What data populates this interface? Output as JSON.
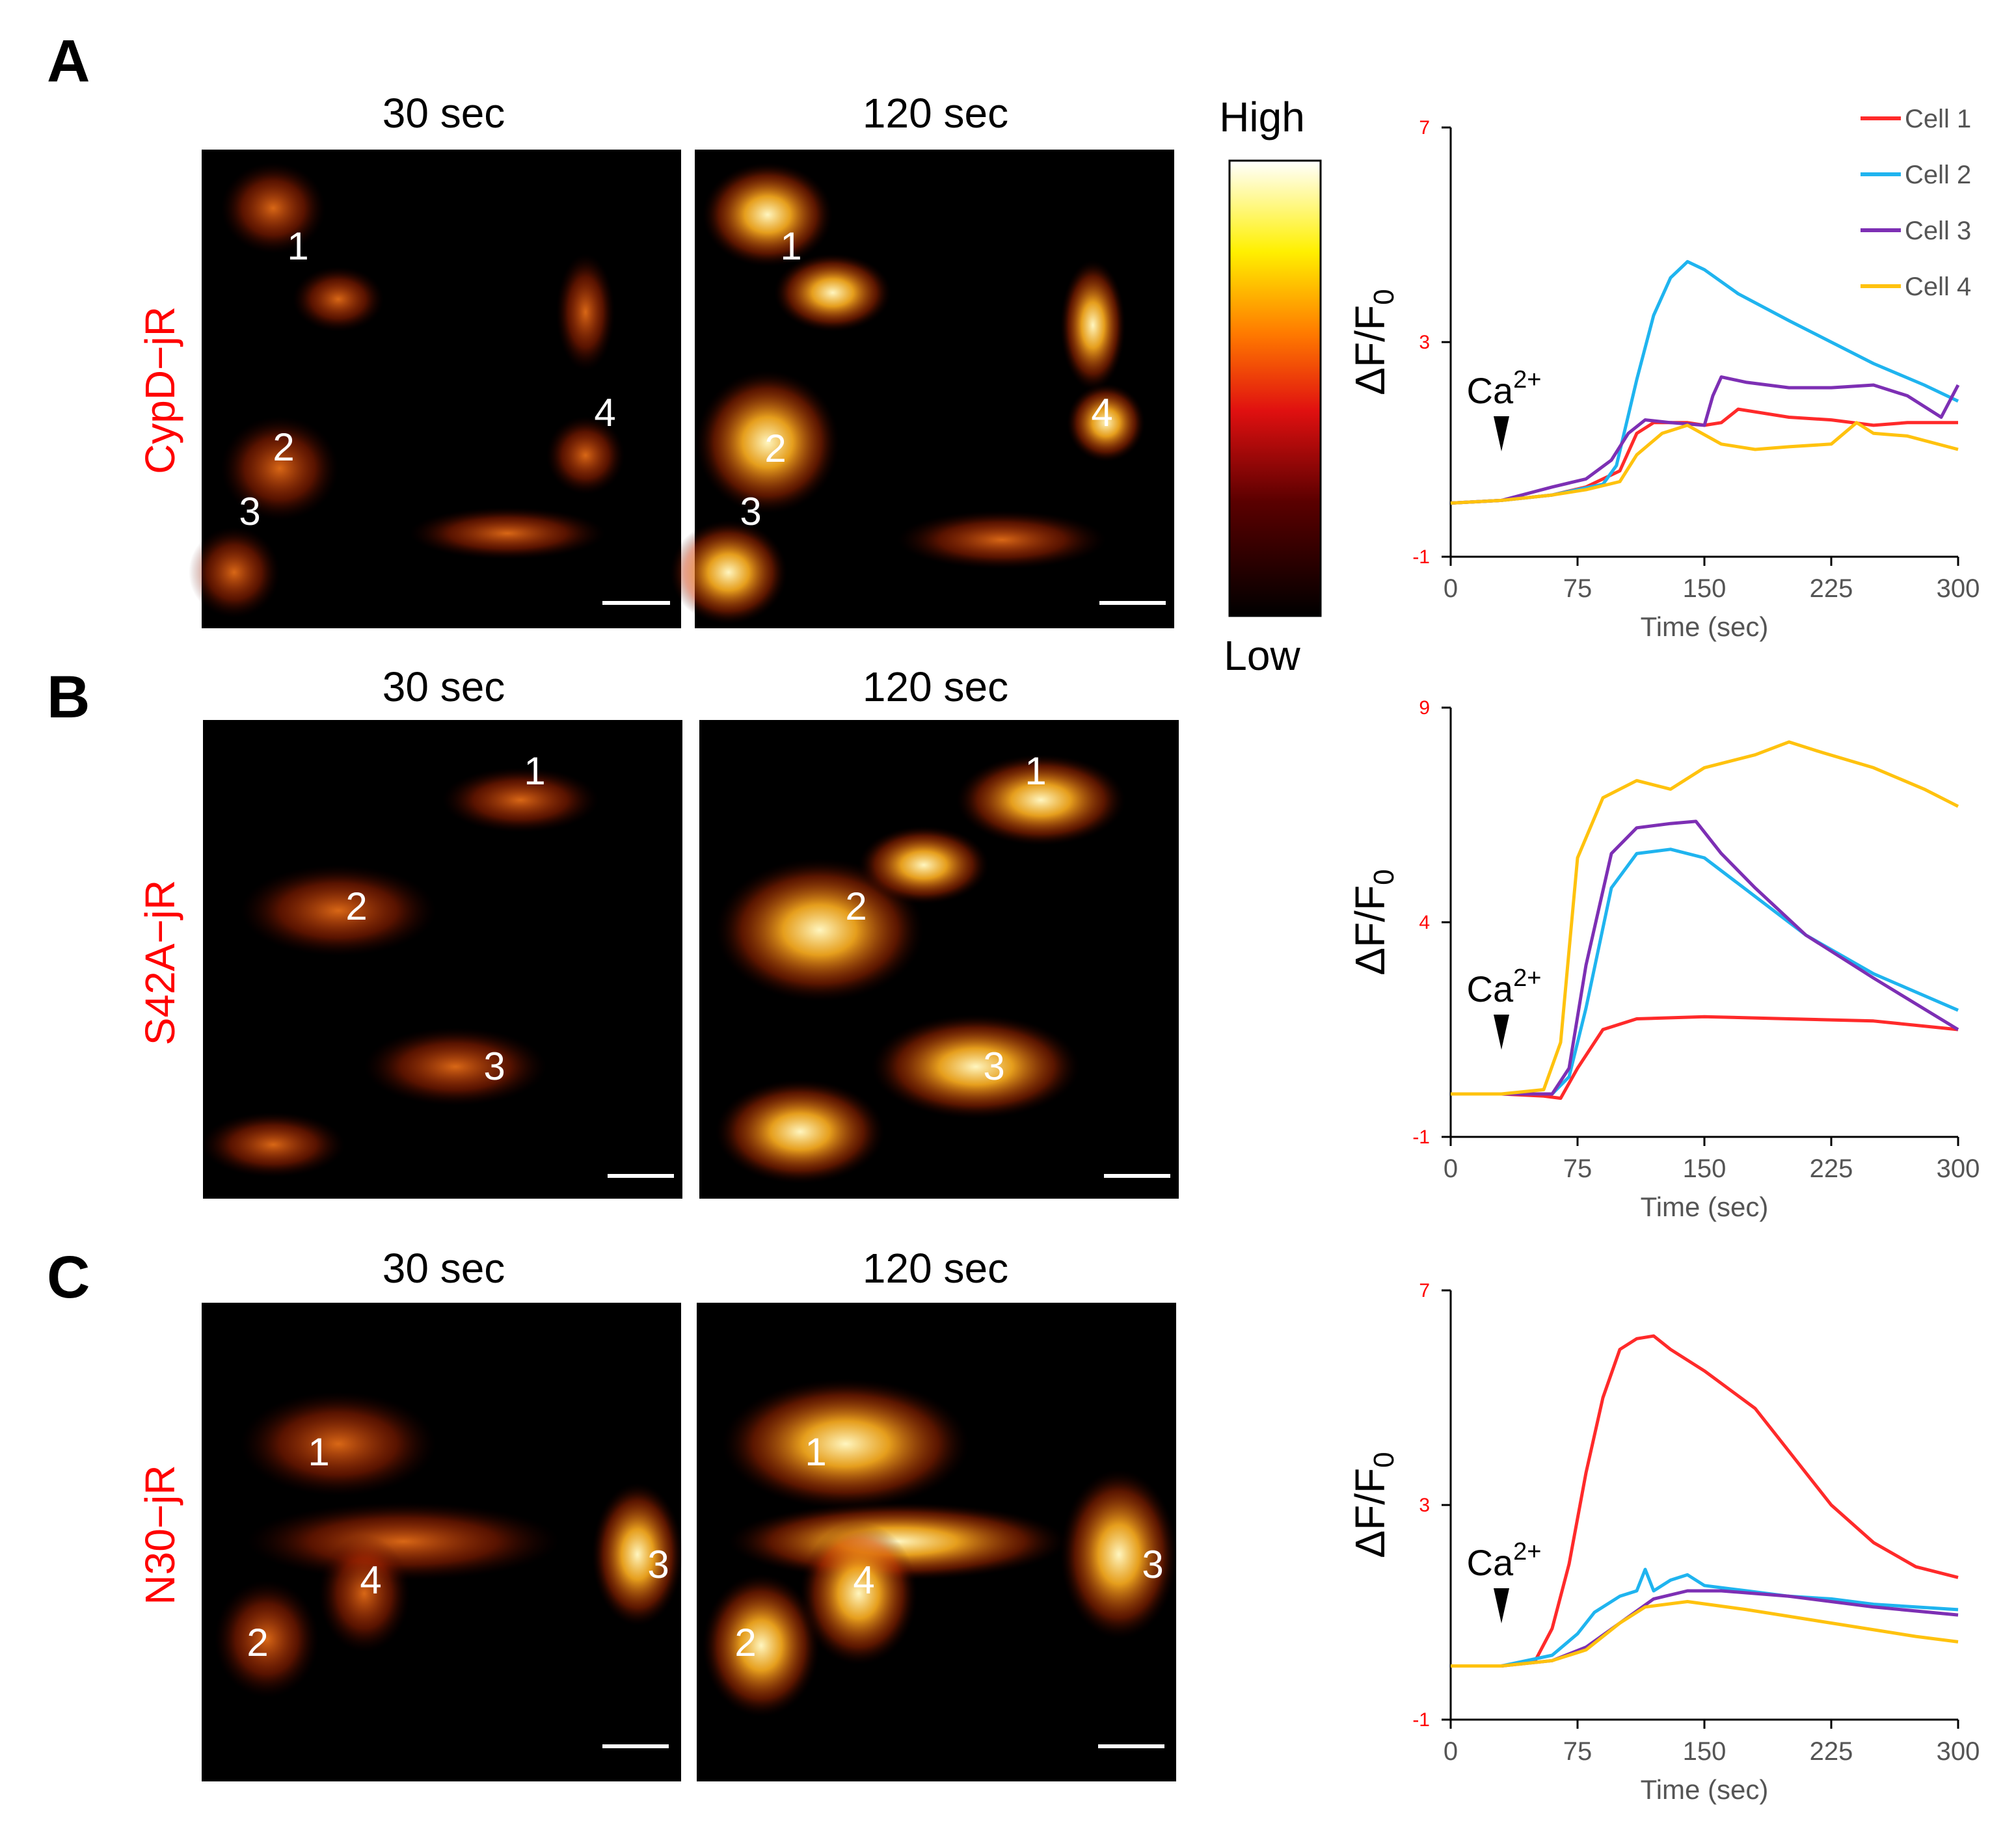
{
  "figure": {
    "panel_letters": [
      "A",
      "B",
      "C"
    ],
    "time_labels": [
      "30 sec",
      "120 sec"
    ],
    "row_labels": [
      "CypD−jR",
      "S42A−jR",
      "N30−jR"
    ],
    "colorbar": {
      "high": "High",
      "low": "Low"
    },
    "cell_number_labels": [
      {
        "left": [
          "1",
          "2",
          "3",
          "4"
        ],
        "right": [
          "1",
          "2",
          "3",
          "4"
        ]
      },
      {
        "left": [
          "1",
          "2",
          "3"
        ],
        "right": [
          "1",
          "2",
          "3"
        ]
      },
      {
        "left": [
          "1",
          "2",
          "3",
          "4"
        ],
        "right": [
          "1",
          "2",
          "3",
          "4"
        ]
      }
    ],
    "series_colors": [
      "#ff2a2a",
      "#1fb4ef",
      "#7d2fb4",
      "#ffc20e"
    ],
    "y_tick_color": "#ff0000"
  },
  "chart_data": [
    {
      "type": "line",
      "panel": "A",
      "title": "",
      "xlabel": "Time (sec)",
      "ylabel": "ΔF/F",
      "ylabel_subscript": "0",
      "xlim": [
        0,
        300
      ],
      "ylim": [
        -1,
        7
      ],
      "xticks": [
        0,
        75,
        150,
        225,
        300
      ],
      "yticks": [
        -1,
        3,
        7
      ],
      "legend": [
        "Cell 1",
        "Cell 2",
        "Cell 3",
        "Cell 4"
      ],
      "legend_position": "top-right",
      "annotation": {
        "text": "Ca",
        "superscript": "2+",
        "x": 30
      },
      "series": [
        {
          "name": "Cell 1",
          "x": [
            0,
            30,
            60,
            80,
            100,
            110,
            120,
            140,
            150,
            160,
            170,
            200,
            225,
            250,
            270,
            300
          ],
          "y": [
            0,
            0.05,
            0.15,
            0.3,
            0.6,
            1.3,
            1.5,
            1.5,
            1.45,
            1.5,
            1.75,
            1.6,
            1.55,
            1.45,
            1.5,
            1.5
          ]
        },
        {
          "name": "Cell 2",
          "x": [
            0,
            30,
            60,
            90,
            98,
            110,
            120,
            130,
            140,
            150,
            170,
            200,
            225,
            250,
            280,
            300
          ],
          "y": [
            0,
            0.05,
            0.15,
            0.35,
            0.7,
            2.3,
            3.5,
            4.2,
            4.5,
            4.35,
            3.9,
            3.4,
            3.0,
            2.6,
            2.2,
            1.9
          ]
        },
        {
          "name": "Cell 3",
          "x": [
            0,
            30,
            60,
            80,
            95,
            105,
            115,
            130,
            150,
            155,
            160,
            175,
            200,
            225,
            250,
            270,
            290,
            300
          ],
          "y": [
            0,
            0.05,
            0.3,
            0.45,
            0.8,
            1.3,
            1.55,
            1.5,
            1.45,
            2.0,
            2.35,
            2.25,
            2.15,
            2.15,
            2.2,
            2.0,
            1.6,
            2.2
          ]
        },
        {
          "name": "Cell 4",
          "x": [
            0,
            30,
            60,
            80,
            100,
            110,
            125,
            140,
            160,
            180,
            200,
            225,
            240,
            250,
            270,
            300
          ],
          "y": [
            0,
            0.05,
            0.15,
            0.25,
            0.4,
            0.9,
            1.3,
            1.45,
            1.1,
            1.0,
            1.05,
            1.1,
            1.5,
            1.3,
            1.25,
            1.0
          ]
        }
      ]
    },
    {
      "type": "line",
      "panel": "B",
      "title": "",
      "xlabel": "Time (sec)",
      "ylabel": "ΔF/F",
      "ylabel_subscript": "0",
      "xlim": [
        0,
        300
      ],
      "ylim": [
        -1,
        9
      ],
      "xticks": [
        0,
        75,
        150,
        225,
        300
      ],
      "yticks": [
        -1,
        4,
        9
      ],
      "legend": [],
      "annotation": {
        "text": "Ca",
        "superscript": "2+",
        "x": 30
      },
      "series": [
        {
          "name": "Cell 1",
          "x": [
            0,
            30,
            55,
            65,
            75,
            90,
            110,
            150,
            200,
            250,
            300
          ],
          "y": [
            0,
            0,
            -0.05,
            -0.1,
            0.6,
            1.5,
            1.75,
            1.8,
            1.75,
            1.7,
            1.5
          ]
        },
        {
          "name": "Cell 2",
          "x": [
            0,
            30,
            60,
            70,
            80,
            95,
            110,
            130,
            150,
            180,
            210,
            250,
            300
          ],
          "y": [
            0,
            0,
            0,
            0.4,
            2.0,
            4.8,
            5.6,
            5.7,
            5.5,
            4.6,
            3.7,
            2.8,
            1.95
          ]
        },
        {
          "name": "Cell 3",
          "x": [
            0,
            30,
            60,
            70,
            80,
            95,
            110,
            130,
            145,
            160,
            180,
            210,
            250,
            300
          ],
          "y": [
            0,
            0,
            0,
            0.6,
            3.0,
            5.6,
            6.2,
            6.3,
            6.35,
            5.6,
            4.8,
            3.7,
            2.7,
            1.5
          ]
        },
        {
          "name": "Cell 4",
          "x": [
            0,
            30,
            55,
            65,
            75,
            90,
            110,
            130,
            150,
            180,
            200,
            220,
            250,
            280,
            300
          ],
          "y": [
            0,
            0,
            0.1,
            1.2,
            5.5,
            6.9,
            7.3,
            7.1,
            7.6,
            7.9,
            8.2,
            7.95,
            7.6,
            7.1,
            6.7
          ]
        }
      ]
    },
    {
      "type": "line",
      "panel": "C",
      "title": "",
      "xlabel": "Time (sec)",
      "ylabel": "ΔF/F",
      "ylabel_subscript": "0",
      "xlim": [
        0,
        300
      ],
      "ylim": [
        -1,
        7
      ],
      "xticks": [
        0,
        75,
        150,
        225,
        300
      ],
      "yticks": [
        -1,
        3,
        7
      ],
      "legend": [],
      "annotation": {
        "text": "Ca",
        "superscript": "2+",
        "x": 30
      },
      "series": [
        {
          "name": "Cell 1",
          "x": [
            0,
            30,
            50,
            60,
            70,
            80,
            90,
            100,
            110,
            120,
            130,
            150,
            180,
            200,
            225,
            250,
            275,
            300
          ],
          "y": [
            0,
            0,
            0.1,
            0.7,
            1.9,
            3.6,
            5.0,
            5.9,
            6.1,
            6.15,
            5.9,
            5.5,
            4.8,
            4.0,
            3.0,
            2.3,
            1.85,
            1.65
          ]
        },
        {
          "name": "Cell 2",
          "x": [
            0,
            30,
            60,
            75,
            85,
            100,
            110,
            115,
            120,
            130,
            140,
            150,
            175,
            200,
            225,
            250,
            300
          ],
          "y": [
            0,
            0,
            0.2,
            0.6,
            1.0,
            1.3,
            1.4,
            1.8,
            1.4,
            1.6,
            1.7,
            1.5,
            1.4,
            1.3,
            1.25,
            1.15,
            1.05
          ]
        },
        {
          "name": "Cell 3",
          "x": [
            0,
            30,
            60,
            80,
            100,
            120,
            140,
            160,
            200,
            250,
            300
          ],
          "y": [
            0,
            0,
            0.1,
            0.35,
            0.8,
            1.25,
            1.4,
            1.4,
            1.3,
            1.1,
            0.95
          ]
        },
        {
          "name": "Cell 4",
          "x": [
            0,
            30,
            60,
            80,
            100,
            115,
            140,
            175,
            225,
            275,
            300
          ],
          "y": [
            0,
            0,
            0.1,
            0.3,
            0.8,
            1.1,
            1.2,
            1.05,
            0.8,
            0.55,
            0.45
          ]
        }
      ]
    }
  ]
}
